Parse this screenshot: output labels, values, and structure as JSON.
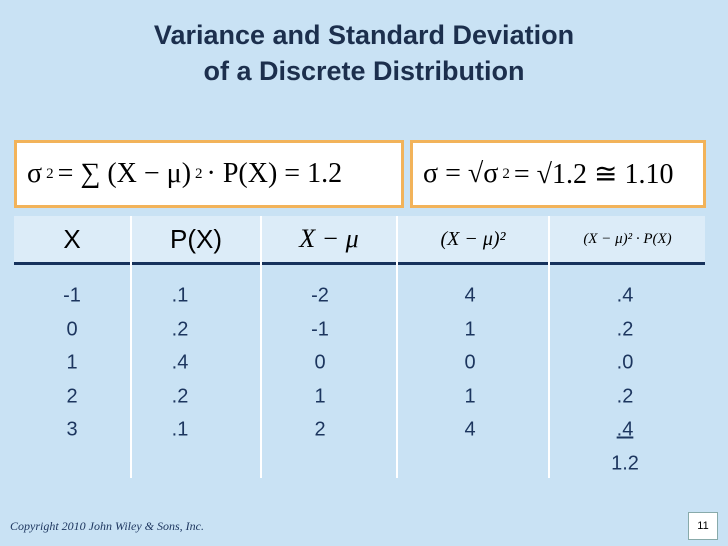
{
  "title": [
    "Variance and Standard Deviation",
    "of a Discrete Distribution"
  ],
  "formulas": {
    "left": [
      "σ",
      "2",
      "= ∑ (X − μ)",
      "2",
      "· P(X) = 1.2"
    ],
    "right": [
      "σ = √σ",
      "2",
      "= √1.2 ≅ 1.10"
    ]
  },
  "table": {
    "headers": [
      "X",
      "P(X)",
      "X − μ",
      "(X − μ)²",
      "(X − μ)² · P(X)"
    ],
    "rows": [
      [
        "-1",
        ".1",
        "-2",
        "4",
        ".4"
      ],
      [
        "0",
        ".2",
        "-1",
        "1",
        ".2"
      ],
      [
        "1",
        ".4",
        "0",
        "0",
        ".0"
      ],
      [
        "2",
        ".2",
        "1",
        "1",
        ".2"
      ],
      [
        "3",
        ".1",
        "2",
        "4",
        ".4"
      ]
    ],
    "total": "1.2"
  },
  "footer": {
    "copyright": "Copyright 2010 John Wiley & Sons, Inc.",
    "page": "11"
  }
}
